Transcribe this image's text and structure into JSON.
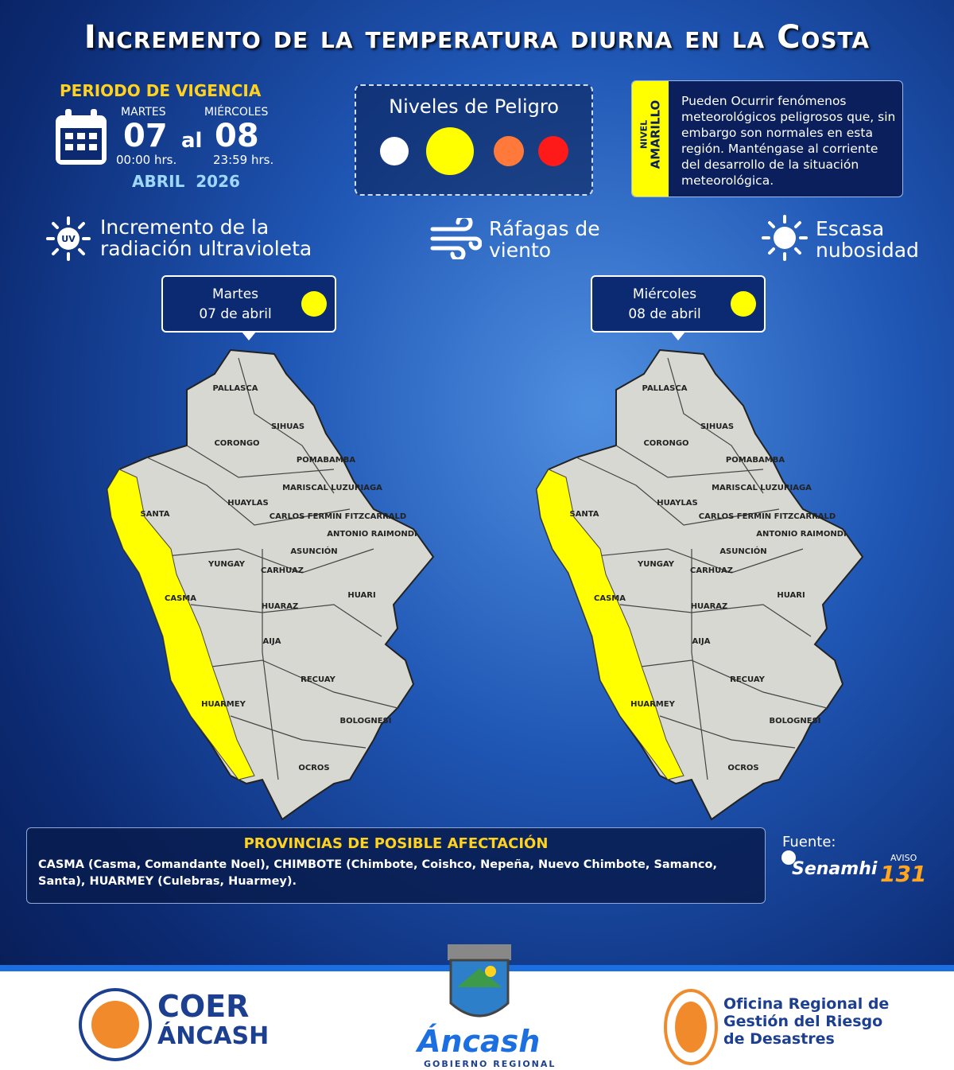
{
  "header": {
    "title": "Incremento de la temperatura diurna en la Costa"
  },
  "period": {
    "label": "PERIODO DE VIGENCIA",
    "start": {
      "day": "MARTES",
      "date": "07",
      "time": "00:00 hrs."
    },
    "connector": "al",
    "end": {
      "day": "MIÉRCOLES",
      "date": "08",
      "time": "23:59 hrs."
    },
    "month_year": "ABRIL  2026"
  },
  "levels": {
    "title": "Niveles de Peligro"
  },
  "level": {
    "prefix": "NIVEL",
    "name": "AMARILLO",
    "description": "Pueden Ocurrir fenómenos meteorológicos peligrosos que, sin embargo son normales en esta región. Manténgase al corriente del desarrollo de la situación meteorológica."
  },
  "phenomena": [
    {
      "icon_text": "UV",
      "text": "Incremento de la radiación ultravioleta"
    },
    {
      "text": "Ráfagas de viento"
    },
    {
      "text": "Escasa nubosidad"
    }
  ],
  "maps": [
    {
      "day": "Martes",
      "date": "07 de abril"
    },
    {
      "day": "Miércoles",
      "date": "08 de abril"
    }
  ],
  "provinces": [
    "PALLASCA",
    "SIHUAS",
    "CORONGO",
    "POMABAMBA",
    "SANTA",
    "HUAYLAS",
    "MARISCAL LUZURIAGA",
    "CARLOS FERMIN FITZCARRALD",
    "ANTONIO RAIMONDI",
    "ASUNCIÓN",
    "YUNGAY",
    "CARHUAZ",
    "HUARI",
    "CASMA",
    "HUARAZ",
    "AIJA",
    "RECUAY",
    "HUARMEY",
    "BOLOGNESI",
    "OCROS"
  ],
  "affected": {
    "title": "PROVINCIAS DE POSIBLE AFECTACIÓN",
    "text": "CASMA (Casma, Comandante Noel), CHIMBOTE (Chimbote, Coishco, Nepeña, Nuevo Chimbote, Samanco, Santa), HUARMEY (Culebras, Huarmey)."
  },
  "source": {
    "label": "Fuente:",
    "name": "Senamhi",
    "notice_label": "AVISO",
    "notice_number": "131"
  },
  "footer": {
    "coer": {
      "name": "COER",
      "region": "ÁNCASH"
    },
    "gov": {
      "name": "Áncash",
      "label": "GOBIERNO REGIONAL"
    },
    "orgrd": [
      "Oficina Regional de",
      "Gestión del Riesgo",
      "de Desastres"
    ]
  }
}
